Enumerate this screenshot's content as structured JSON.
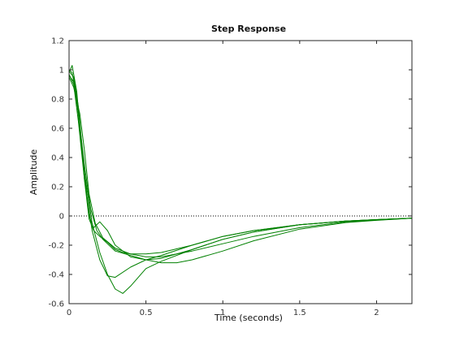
{
  "chart_data": {
    "type": "line",
    "title": "Step Response",
    "xlabel": "Time (seconds)",
    "ylabel": "Amplitude",
    "xlim": [
      0,
      2.23
    ],
    "ylim": [
      -0.6,
      1.2
    ],
    "xticks": [
      0,
      0.5,
      1,
      1.5,
      2
    ],
    "xtick_labels": [
      "0",
      "0.5",
      "1",
      "1.5",
      "2"
    ],
    "yticks": [
      -0.6,
      -0.4,
      -0.2,
      0,
      0.2,
      0.4,
      0.6,
      0.8,
      1,
      1.2
    ],
    "ytick_labels": [
      "-0.6",
      "-0.4",
      "-0.2",
      "0",
      "0.2",
      "0.4",
      "0.6",
      "0.8",
      "1",
      "1.2"
    ],
    "grid": false,
    "reference_line": {
      "y": 0,
      "style": "dotted"
    },
    "line_color": "#008000",
    "series": [
      {
        "x": [
          0,
          0.02,
          0.05,
          0.1,
          0.15,
          0.2,
          0.25,
          0.3,
          0.35,
          0.4,
          0.5,
          0.6,
          0.8,
          1.0,
          1.2,
          1.5,
          1.8,
          2.0,
          2.23
        ],
        "y": [
          1.0,
          0.98,
          0.8,
          0.3,
          -0.05,
          -0.25,
          -0.4,
          -0.5,
          -0.53,
          -0.48,
          -0.36,
          -0.31,
          -0.23,
          -0.16,
          -0.11,
          -0.06,
          -0.035,
          -0.025,
          -0.015
        ]
      },
      {
        "x": [
          0,
          0.02,
          0.05,
          0.1,
          0.15,
          0.2,
          0.25,
          0.3,
          0.4,
          0.5,
          0.6,
          0.8,
          1.0,
          1.2,
          1.5,
          1.8,
          2.0,
          2.23
        ],
        "y": [
          0.98,
          1.03,
          0.85,
          0.25,
          -0.1,
          -0.3,
          -0.41,
          -0.42,
          -0.35,
          -0.3,
          -0.27,
          -0.2,
          -0.14,
          -0.1,
          -0.06,
          -0.035,
          -0.025,
          -0.015
        ]
      },
      {
        "x": [
          0,
          0.03,
          0.06,
          0.1,
          0.13,
          0.16,
          0.2,
          0.25,
          0.3,
          0.4,
          0.5,
          0.6,
          0.8,
          1.0,
          1.2,
          1.5,
          1.8,
          2.0,
          2.23
        ],
        "y": [
          0.99,
          0.95,
          0.75,
          0.3,
          0.0,
          -0.08,
          -0.04,
          -0.1,
          -0.2,
          -0.28,
          -0.3,
          -0.29,
          -0.23,
          -0.16,
          -0.11,
          -0.06,
          -0.035,
          -0.025,
          -0.015
        ]
      },
      {
        "x": [
          0,
          0.03,
          0.06,
          0.1,
          0.13,
          0.16,
          0.2,
          0.25,
          0.3,
          0.35,
          0.4,
          0.5,
          0.6,
          0.8,
          1.0,
          1.2,
          1.5,
          1.8,
          2.0,
          2.23
        ],
        "y": [
          0.97,
          0.9,
          0.65,
          0.25,
          -0.02,
          -0.1,
          -0.14,
          -0.18,
          -0.23,
          -0.25,
          -0.26,
          -0.26,
          -0.25,
          -0.2,
          -0.14,
          -0.1,
          -0.06,
          -0.035,
          -0.025,
          -0.015
        ]
      },
      {
        "x": [
          0,
          0.03,
          0.06,
          0.1,
          0.14,
          0.18,
          0.22,
          0.3,
          0.4,
          0.5,
          0.6,
          0.7,
          0.8,
          1.0,
          1.2,
          1.5,
          1.8,
          2.0,
          2.23
        ],
        "y": [
          0.96,
          0.92,
          0.7,
          0.35,
          0.05,
          -0.1,
          -0.16,
          -0.24,
          -0.27,
          -0.3,
          -0.32,
          -0.32,
          -0.3,
          -0.24,
          -0.17,
          -0.09,
          -0.045,
          -0.03,
          -0.015
        ]
      },
      {
        "x": [
          0,
          0.03,
          0.07,
          0.1,
          0.13,
          0.17,
          0.22,
          0.3,
          0.4,
          0.5,
          0.6,
          0.7,
          0.8,
          1.0,
          1.2,
          1.5,
          1.8,
          2.0,
          2.23
        ],
        "y": [
          0.95,
          0.88,
          0.7,
          0.45,
          0.15,
          -0.05,
          -0.15,
          -0.22,
          -0.26,
          -0.28,
          -0.28,
          -0.26,
          -0.24,
          -0.19,
          -0.14,
          -0.08,
          -0.04,
          -0.028,
          -0.015
        ]
      }
    ]
  }
}
